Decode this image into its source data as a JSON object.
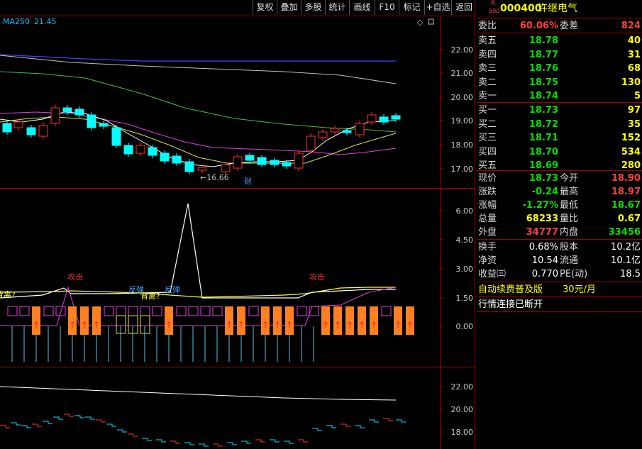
{
  "toolbar": {
    "buttons": [
      "复权",
      "叠加",
      "多股",
      "统计",
      "画线",
      "F10",
      "标记",
      "+自选",
      "返回"
    ]
  },
  "main_chart": {
    "ma_label": "MA250",
    "ma_value": "21.45",
    "price_ticks": [
      "22.00",
      "21.00",
      "20.00",
      "19.00",
      "18.00",
      "17.00"
    ],
    "low_marker": "16.66",
    "event_marker": "财"
  },
  "indicator_chart": {
    "ticks": [
      "6.00",
      "4.50",
      "3.00",
      "1.50",
      "0.00"
    ],
    "labels": [
      "攻击",
      "反弹",
      "背离?",
      "反弹",
      "攻击",
      "背离?"
    ]
  },
  "volume_chart": {
    "ticks": [
      "22.00",
      "20.00",
      "18.00"
    ]
  },
  "stock": {
    "badge_r": "R",
    "badge_num": "500",
    "code": "000400",
    "name": "许继电气"
  },
  "order_book": {
    "weibi_label": "委比",
    "weibi_value": "60.06%",
    "weicha_label": "委差",
    "weicha_value": "824",
    "asks": [
      {
        "label": "卖五",
        "price": "18.78",
        "vol": "40"
      },
      {
        "label": "卖四",
        "price": "18.77",
        "vol": "31"
      },
      {
        "label": "卖三",
        "price": "18.76",
        "vol": "68"
      },
      {
        "label": "卖二",
        "price": "18.75",
        "vol": "130"
      },
      {
        "label": "卖一",
        "price": "18.74",
        "vol": "5"
      }
    ],
    "bids": [
      {
        "label": "买一",
        "price": "18.73",
        "vol": "97"
      },
      {
        "label": "买二",
        "price": "18.72",
        "vol": "35"
      },
      {
        "label": "买三",
        "price": "18.71",
        "vol": "152"
      },
      {
        "label": "买四",
        "price": "18.70",
        "vol": "534"
      },
      {
        "label": "买五",
        "price": "18.69",
        "vol": "280"
      }
    ]
  },
  "quote": {
    "rows": [
      {
        "l1": "现价",
        "v1": "18.73",
        "c1": "green",
        "l2": "今开",
        "v2": "18.90",
        "c2": "red"
      },
      {
        "l1": "涨跌",
        "v1": "-0.24",
        "c1": "green",
        "l2": "最高",
        "v2": "18.97",
        "c2": "red"
      },
      {
        "l1": "涨幅",
        "v1": "-1.27%",
        "c1": "green",
        "l2": "最低",
        "v2": "18.67",
        "c2": "green"
      },
      {
        "l1": "总量",
        "v1": "68233",
        "c1": "yellow",
        "l2": "量比",
        "v2": "0.67",
        "c2": "yellow"
      },
      {
        "l1": "外盘",
        "v1": "34777",
        "c1": "red",
        "l2": "内盘",
        "v2": "33456",
        "c2": "green"
      }
    ],
    "rows2": [
      {
        "l1": "换手",
        "v1": "0.68%",
        "l2": "股本",
        "v2": "10.2亿"
      },
      {
        "l1": "净资",
        "v1": "10.54",
        "l2": "流通",
        "v2": "10.1亿"
      },
      {
        "l1": "收益㈢",
        "v1": "0.770",
        "l2": "PE(动)",
        "v2": "18.5"
      }
    ]
  },
  "footer": {
    "promo": "自动续费普及版",
    "price": "30元/月",
    "status": "行情连接已断开"
  },
  "colors": {
    "up": "#ff3030",
    "down": "#00ffff",
    "grid_red": "#a00000",
    "accent_yellow": "#ffff00"
  }
}
